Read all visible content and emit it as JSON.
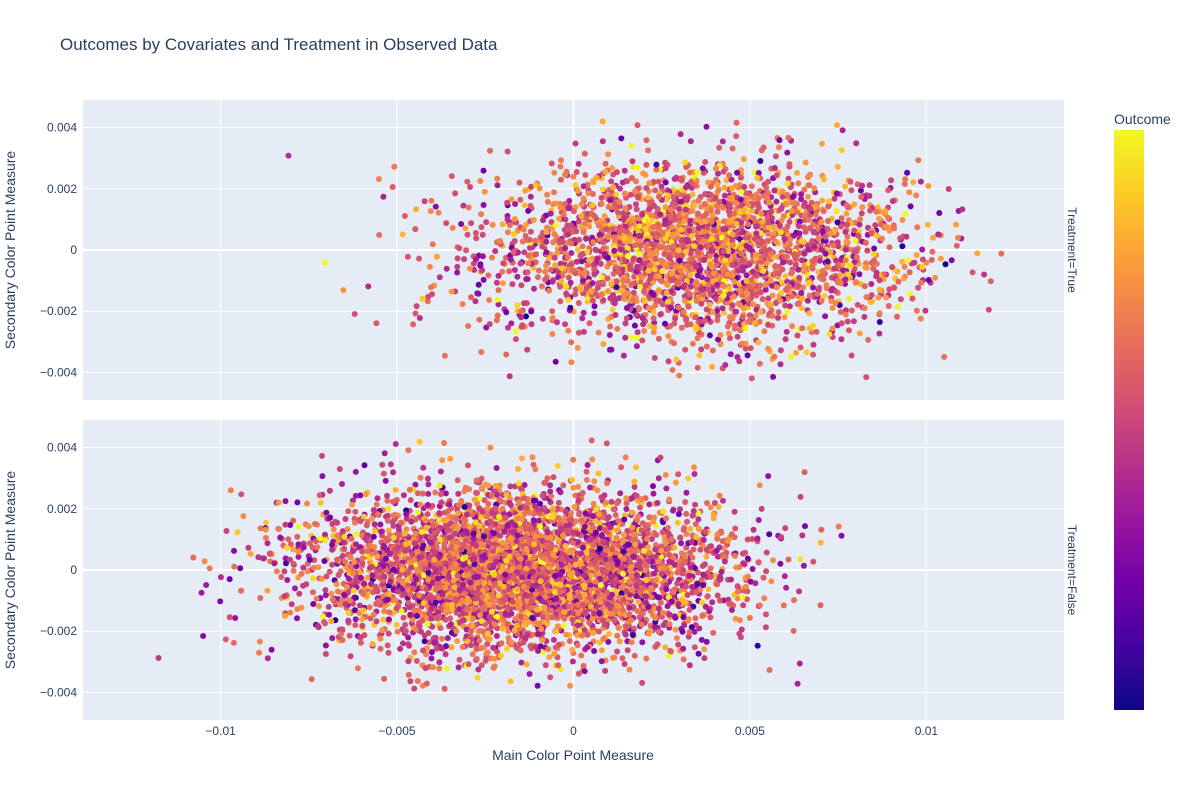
{
  "chart_data": {
    "type": "scatter",
    "title": "Outcomes by Covariates and Treatment in Observed Data",
    "xlabel": "Main Color Point Measure",
    "ylabel": "Secondary Color Point Measure",
    "xlim": [
      -0.0139,
      0.0139
    ],
    "ylim": [
      -0.0049,
      0.0049
    ],
    "x_ticks": [
      -0.01,
      -0.005,
      0,
      0.005,
      0.01
    ],
    "x_tick_labels": [
      "−0.01",
      "−0.005",
      "0",
      "0.005",
      "0.01"
    ],
    "y_ticks": [
      -0.004,
      -0.002,
      0,
      0.002,
      0.004
    ],
    "y_tick_labels": [
      "−0.004",
      "−0.002",
      "0",
      "0.002",
      "0.004"
    ],
    "grid": true,
    "colorbar": {
      "title": "Outcome",
      "colorscale": [
        "#0d0887",
        "#46039f",
        "#7201a8",
        "#9c179e",
        "#bd3786",
        "#d8576b",
        "#ed7953",
        "#fb9f3a",
        "#fdca26",
        "#f0f921"
      ]
    },
    "facets": [
      {
        "label": "Treatment=True",
        "approx_points": 3000,
        "x_center": 0.0035,
        "x_spread": 0.003,
        "x_range": [
          -0.0122,
          0.0124
        ],
        "y_spread": 0.0014,
        "y_range": [
          -0.0043,
          0.0043
        ],
        "mean_outcome": 0.62
      },
      {
        "label": "Treatment=False",
        "approx_points": 5000,
        "x_center": -0.0015,
        "x_spread": 0.0029,
        "x_range": [
          -0.0118,
          0.0078
        ],
        "y_spread": 0.0013,
        "y_range": [
          -0.004,
          0.0044
        ],
        "mean_outcome": 0.6
      }
    ]
  }
}
